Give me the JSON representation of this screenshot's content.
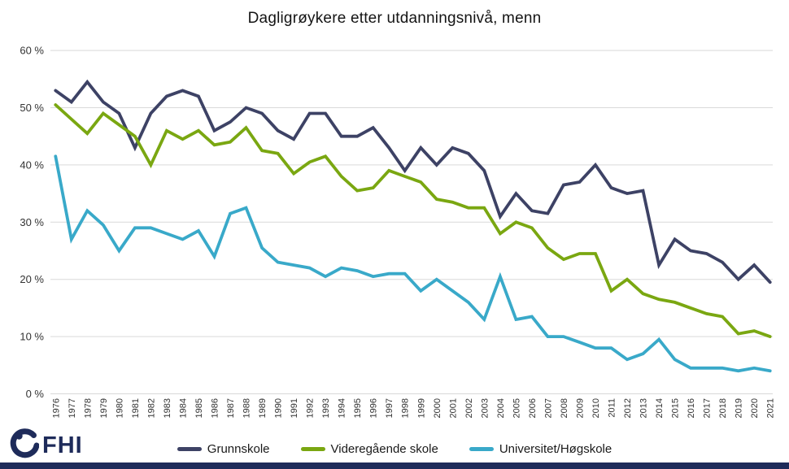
{
  "title": "Dagligrøykere etter utdanningsnivå, menn",
  "logo": {
    "text": "FHI"
  },
  "colors": {
    "grunnskole": "#3d4265",
    "videregaende": "#7aa711",
    "universitet": "#39a9c9",
    "grid": "#d9d9d9",
    "axis_text": "#333333",
    "footer_bar": "#1e2b5a",
    "logo": "#1e2b5a"
  },
  "chart_data": {
    "type": "line",
    "title": "Dagligrøykere etter utdanningsnivå, menn",
    "x": [
      1976,
      1977,
      1978,
      1979,
      1980,
      1981,
      1982,
      1983,
      1984,
      1985,
      1986,
      1987,
      1988,
      1989,
      1990,
      1991,
      1992,
      1993,
      1994,
      1995,
      1996,
      1997,
      1998,
      1999,
      2000,
      2001,
      2002,
      2003,
      2004,
      2005,
      2006,
      2007,
      2008,
      2009,
      2010,
      2011,
      2012,
      2013,
      2014,
      2015,
      2016,
      2017,
      2018,
      2019,
      2020,
      2021
    ],
    "ylim": [
      0,
      60
    ],
    "y_ticks": [
      0,
      10,
      20,
      30,
      40,
      50,
      60
    ],
    "y_tick_suffix": " %",
    "grid": "horizontal",
    "legend_position": "bottom",
    "series": [
      {
        "name": "Grunnskole",
        "color": "#3d4265",
        "values": [
          53,
          51,
          54.5,
          51,
          49,
          43,
          49,
          52,
          53,
          52,
          46,
          47.5,
          50,
          49,
          46,
          44.5,
          49,
          49,
          45,
          45,
          46.5,
          43,
          39,
          43,
          40,
          43,
          42,
          39,
          31,
          35,
          32,
          31.5,
          36.5,
          37,
          40,
          36,
          35,
          35.5,
          22.5,
          27,
          25,
          24.5,
          23,
          20,
          22.5,
          19.5
        ]
      },
      {
        "name": "Videregående skole",
        "color": "#7aa711",
        "values": [
          50.5,
          48,
          45.5,
          49,
          47,
          45,
          40,
          46,
          44.5,
          46,
          43.5,
          44,
          46.5,
          42.5,
          42,
          38.5,
          40.5,
          41.5,
          38,
          35.5,
          36,
          39,
          38,
          37,
          34,
          33.5,
          32.5,
          32.5,
          28,
          30,
          29,
          25.5,
          23.5,
          24.5,
          24.5,
          18,
          20,
          17.5,
          16.5,
          16,
          15,
          14,
          13.5,
          10.5,
          11,
          10
        ]
      },
      {
        "name": "Universitet/Høgskole",
        "color": "#39a9c9",
        "values": [
          41.5,
          27,
          32,
          29.5,
          25,
          29,
          29,
          28,
          27,
          28.5,
          24,
          31.5,
          32.5,
          25.5,
          23,
          22.5,
          22,
          20.5,
          22,
          21.5,
          20.5,
          21,
          21,
          18,
          20,
          18,
          16,
          13,
          20.5,
          13,
          13.5,
          10,
          10,
          9,
          8,
          8,
          6,
          7,
          9.5,
          6,
          4.5,
          4.5,
          4.5,
          4,
          4.5,
          4
        ]
      }
    ]
  }
}
